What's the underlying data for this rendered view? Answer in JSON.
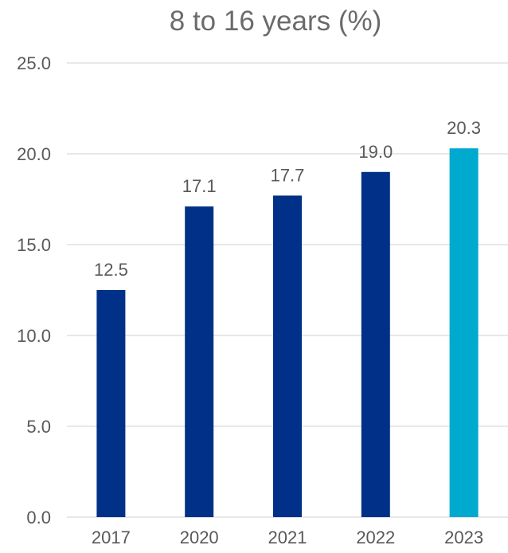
{
  "chart_data": {
    "type": "bar",
    "title": "8 to 16 years (%)",
    "categories": [
      "2017",
      "2020",
      "2021",
      "2022",
      "2023"
    ],
    "values": [
      12.5,
      17.1,
      17.7,
      19.0,
      20.3
    ],
    "value_labels": [
      "12.5",
      "17.1",
      "17.7",
      "19.0",
      "20.3"
    ],
    "bar_colors": [
      "#003087",
      "#003087",
      "#003087",
      "#003087",
      "#00A9CE"
    ],
    "ylim": [
      0,
      25
    ],
    "yticks": [
      0,
      5,
      10,
      15,
      20,
      25
    ],
    "ytick_labels": [
      "0.0",
      "5.0",
      "10.0",
      "15.0",
      "20.0",
      "25.0"
    ],
    "xlabel": "",
    "ylabel": "",
    "grid": true,
    "legend": "none",
    "colors": {
      "text": "#595959",
      "title": "#6B6B6B",
      "gridline": "#D9D9D9"
    }
  }
}
